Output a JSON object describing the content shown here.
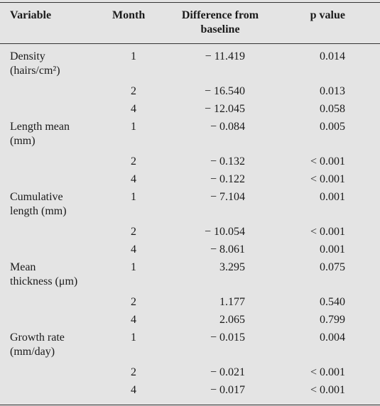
{
  "table": {
    "header": [
      "Variable",
      "Month",
      "Difference from baseline",
      "p value"
    ],
    "groups": [
      {
        "variable": [
          "Density",
          "(hairs/cm²)"
        ],
        "rows": [
          [
            "1",
            "− 11.419",
            "0.014"
          ],
          [
            "2",
            "− 16.540",
            "0.013"
          ],
          [
            "4",
            "− 12.045",
            "0.058"
          ]
        ]
      },
      {
        "variable": [
          "Length mean",
          "(mm)"
        ],
        "rows": [
          [
            "1",
            "− 0.084",
            "0.005"
          ],
          [
            "2",
            "− 0.132",
            "< 0.001"
          ],
          [
            "4",
            "− 0.122",
            "< 0.001"
          ]
        ]
      },
      {
        "variable": [
          "Cumulative",
          "length (mm)"
        ],
        "rows": [
          [
            "1",
            "− 7.104",
            "0.001"
          ],
          [
            "2",
            "− 10.054",
            "< 0.001"
          ],
          [
            "4",
            "− 8.061",
            "0.001"
          ]
        ]
      },
      {
        "variable": [
          "Mean",
          "thickness (μm)"
        ],
        "rows": [
          [
            "1",
            "3.295",
            "0.075"
          ],
          [
            "2",
            "1.177",
            "0.540"
          ],
          [
            "4",
            "2.065",
            "0.799"
          ]
        ]
      },
      {
        "variable": [
          "Growth rate",
          "(mm/day)"
        ],
        "rows": [
          [
            "1",
            "− 0.015",
            "0.004"
          ],
          [
            "2",
            "− 0.021",
            "< 0.001"
          ],
          [
            "4",
            "− 0.017",
            "< 0.001"
          ]
        ]
      }
    ]
  }
}
